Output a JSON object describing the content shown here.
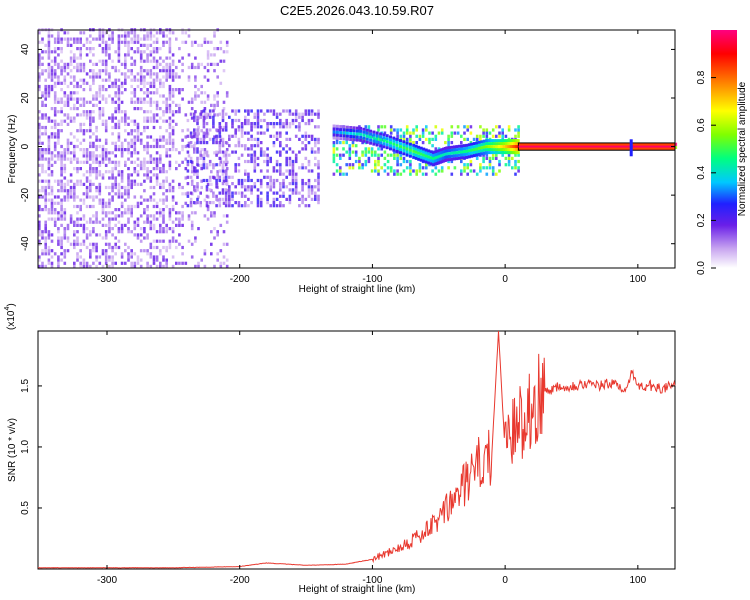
{
  "title": "C2E5.2026.043.10.59.R07",
  "chart_data": [
    {
      "type": "heatmap",
      "name": "spectrogram",
      "xlabel": "Height of straight line (km)",
      "ylabel": "Frequency (Hz)",
      "xlim": [
        -352,
        128
      ],
      "ylim": [
        -50,
        48
      ],
      "xticks": [
        -300,
        -200,
        -100,
        0,
        100
      ],
      "yticks": [
        -40,
        -20,
        0,
        20,
        40
      ],
      "colorbar": {
        "label": "Normalized spectral amplitude",
        "range": [
          0.0,
          1.0
        ],
        "ticks": [
          0.0,
          0.2,
          0.4,
          0.6,
          0.8
        ],
        "colors": [
          "#ffffff",
          "#c9a6f0",
          "#6a1fe8",
          "#2020ff",
          "#00c8ff",
          "#00ff80",
          "#80ff00",
          "#ffff00",
          "#ff8000",
          "#ff0000",
          "#ff0080"
        ]
      },
      "regions": [
        {
          "x": [
            -352,
            -210
          ],
          "f": [
            -50,
            48
          ],
          "amplitude": 0.15,
          "note": "broadband noise"
        },
        {
          "x": [
            -240,
            -140
          ],
          "f": [
            -25,
            15
          ],
          "amplitude": 0.2,
          "note": "noisy cluster"
        },
        {
          "x": [
            -130,
            10
          ],
          "f": [
            -12,
            8
          ],
          "amplitude": 0.5,
          "note": "carrier tone descending"
        },
        {
          "x": [
            10,
            128
          ],
          "f": [
            -1,
            1
          ],
          "amplitude": 0.95,
          "note": "strong carrier"
        }
      ],
      "carrier_track": {
        "x": [
          -130,
          -110,
          -90,
          -70,
          -55,
          -45,
          -30,
          -15,
          0,
          10
        ],
        "freq": [
          6,
          5,
          2,
          -2,
          -5,
          -3,
          -2,
          0,
          0,
          0
        ],
        "amplitude": [
          0.35,
          0.45,
          0.5,
          0.55,
          0.5,
          0.45,
          0.5,
          0.6,
          0.75,
          0.9
        ]
      },
      "annotation": {
        "x": 95,
        "freq": 0,
        "note": "spike at ~95 km"
      }
    },
    {
      "type": "line",
      "name": "snr",
      "xlabel": "Height of straight line (km)",
      "ylabel": "SNR (10 * v/v)",
      "y_multiplier": "(x10",
      "y_multiplier_exp": "4",
      "y_multiplier_close": ")",
      "xlim": [
        -352,
        128
      ],
      "ylim": [
        0.0,
        1.95
      ],
      "xticks": [
        -300,
        -200,
        -100,
        0,
        100
      ],
      "yticks": [
        0.5,
        1.0,
        1.5
      ],
      "ytick_labels": [
        "0.5",
        "1.0",
        "1.5"
      ],
      "series": [
        {
          "name": "SNR",
          "color": "#e8392f",
          "x": [
            -352,
            -300,
            -250,
            -200,
            -180,
            -150,
            -120,
            -100,
            -80,
            -60,
            -50,
            -40,
            -30,
            -20,
            -10,
            -5,
            0,
            10,
            20,
            30,
            40,
            50,
            60,
            70,
            80,
            90,
            95,
            100,
            110,
            120,
            128
          ],
          "y": [
            0.01,
            0.01,
            0.01,
            0.02,
            0.05,
            0.03,
            0.04,
            0.08,
            0.18,
            0.3,
            0.4,
            0.55,
            0.7,
            0.85,
            0.95,
            1.95,
            0.95,
            1.2,
            1.35,
            1.45,
            1.5,
            1.5,
            1.52,
            1.5,
            1.52,
            1.48,
            1.6,
            1.5,
            1.5,
            1.48,
            1.5
          ]
        }
      ]
    }
  ]
}
